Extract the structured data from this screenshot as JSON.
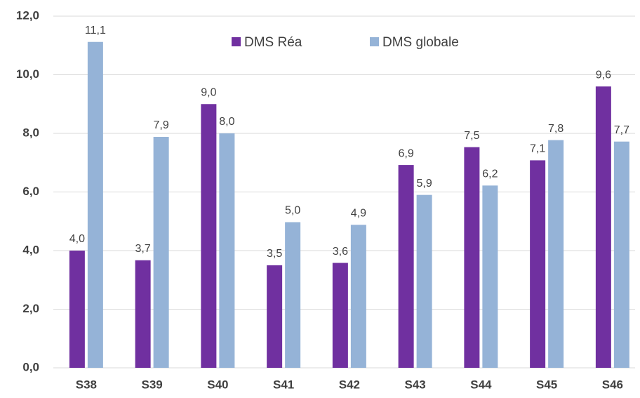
{
  "chart_data": {
    "type": "bar",
    "categories": [
      "S38",
      "S39",
      "S40",
      "S41",
      "S42",
      "S43",
      "S44",
      "S45",
      "S46"
    ],
    "series": [
      {
        "name": "DMS Réa",
        "color": "#7030a0",
        "values": [
          4.0,
          3.67,
          9.0,
          3.5,
          3.58,
          6.92,
          7.53,
          7.08,
          9.6
        ],
        "value_labels": [
          "4,0",
          "3,7",
          "9,0",
          "3,5",
          "3,6",
          "6,9",
          "7,5",
          "7,1",
          "9,6"
        ]
      },
      {
        "name": "DMS globale",
        "color": "#95b3d7",
        "values": [
          11.12,
          7.88,
          8.0,
          4.97,
          4.88,
          5.9,
          6.22,
          7.77,
          7.72
        ],
        "value_labels": [
          "11,1",
          "7,9",
          "8,0",
          "5,0",
          "4,9",
          "5,9",
          "6,2",
          "7,8",
          "7,7"
        ]
      }
    ],
    "ylim": [
      0,
      12
    ],
    "yticks": [
      {
        "value": 0,
        "label": "0,0"
      },
      {
        "value": 2,
        "label": "2,0"
      },
      {
        "value": 4,
        "label": "4,0"
      },
      {
        "value": 6,
        "label": "6,0"
      },
      {
        "value": 8,
        "label": "8,0"
      },
      {
        "value": 10,
        "label": "10,0"
      },
      {
        "value": 12,
        "label": "12,0"
      }
    ],
    "grid": true,
    "legend": "top"
  }
}
